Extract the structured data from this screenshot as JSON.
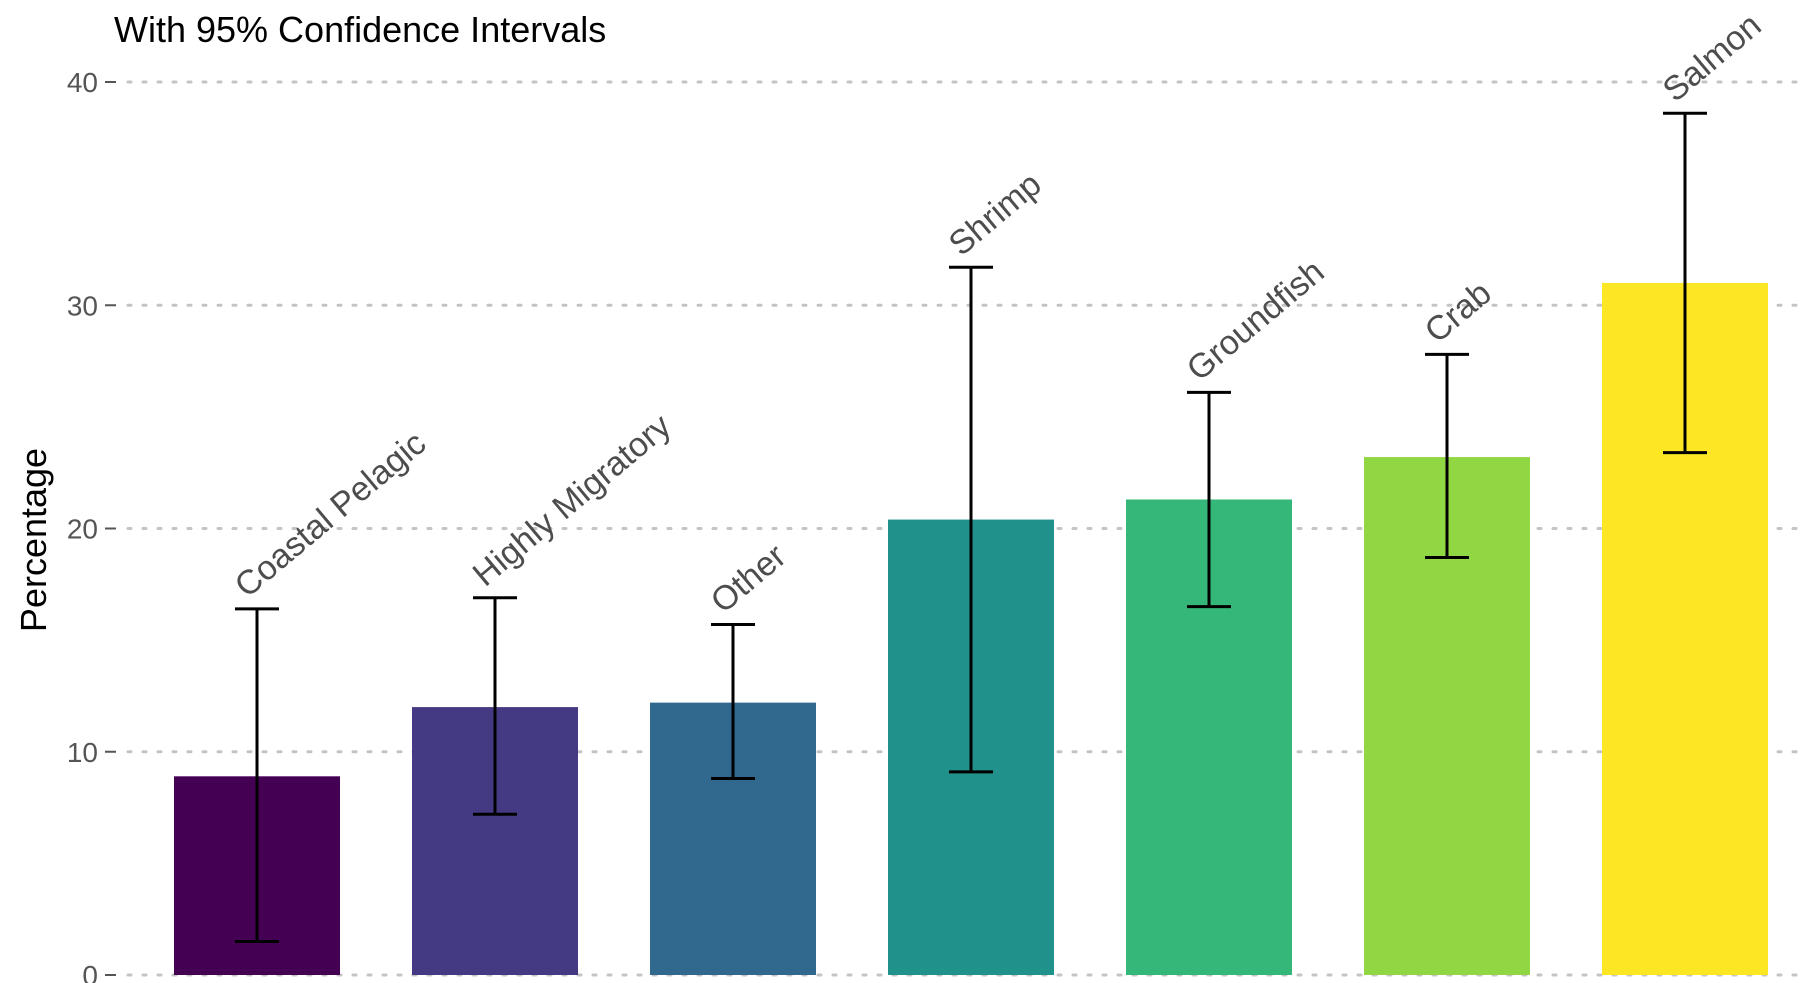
{
  "chart_data": {
    "type": "bar",
    "subtitle": "With 95% Confidence Intervals",
    "ylabel": "Percentage",
    "xlabel": "",
    "ylim": [
      0,
      40
    ],
    "yticks": [
      "0",
      "10",
      "20",
      "30",
      "40"
    ],
    "grid": true,
    "legend": "none",
    "categories": [
      "Coastal Pelagic",
      "Highly Migratory",
      "Other",
      "Shrimp",
      "Groundfish",
      "Crab",
      "Salmon"
    ],
    "values": [
      8.9,
      12.0,
      12.2,
      20.4,
      21.3,
      23.2,
      31.0
    ],
    "ci_lower": [
      1.5,
      7.2,
      8.8,
      9.1,
      16.5,
      18.7,
      23.4
    ],
    "ci_upper": [
      16.4,
      16.9,
      15.7,
      31.7,
      26.1,
      27.8,
      38.6
    ],
    "colors": [
      "#440154",
      "#443983",
      "#31688e",
      "#21918c",
      "#35b779",
      "#90d743",
      "#fde725"
    ]
  }
}
